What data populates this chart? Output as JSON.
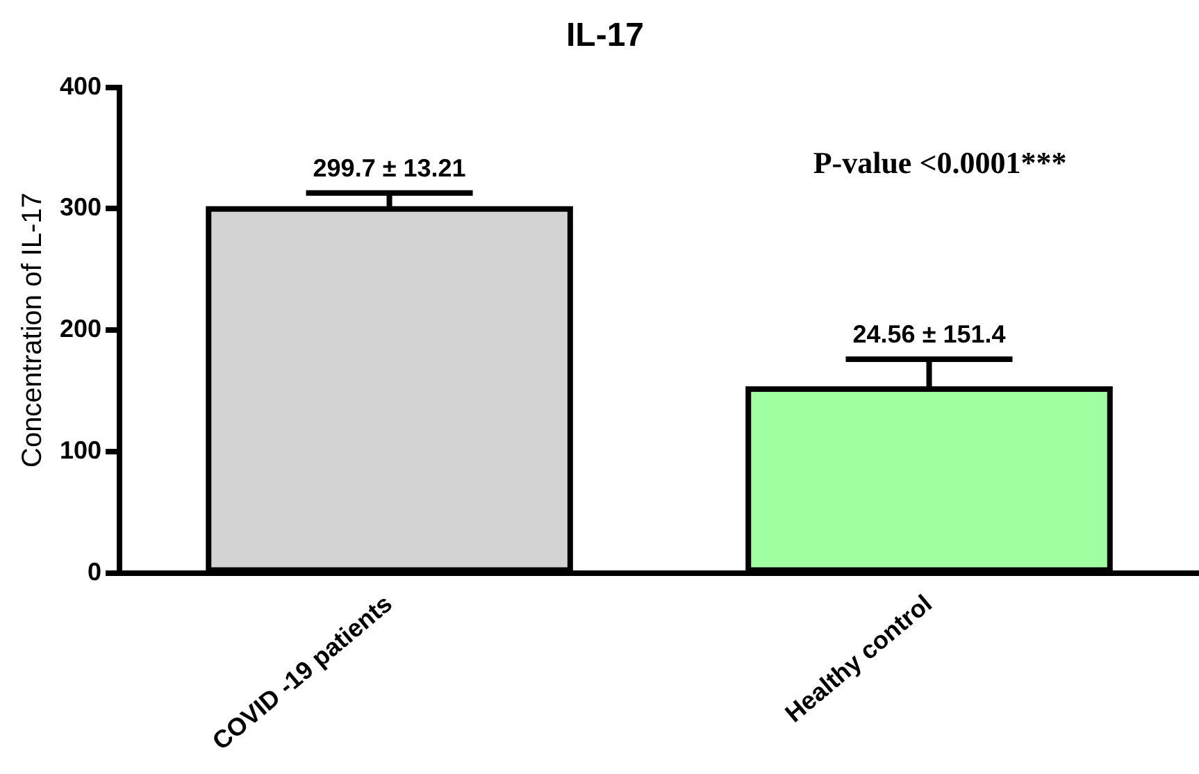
{
  "chart_data": {
    "type": "bar",
    "title": "IL-17",
    "ylabel": "Concentration of IL-17",
    "categories": [
      "COVID -19 patients",
      "Healthy control"
    ],
    "values": [
      299.7,
      151.4
    ],
    "colors": [
      "#d3d3d3",
      "#a0ffa0"
    ],
    "errors": [
      [
        299.7,
        312.91
      ],
      [
        151.4,
        175.96
      ]
    ],
    "value_labels": [
      "299.7 ± 13.21",
      "24.56 ± 151.4"
    ],
    "annotations": [
      "P-value <0.0001***"
    ],
    "ylim": [
      0,
      400
    ],
    "yticks": [
      0,
      100,
      200,
      300,
      400
    ],
    "grid": false,
    "legend": false
  }
}
